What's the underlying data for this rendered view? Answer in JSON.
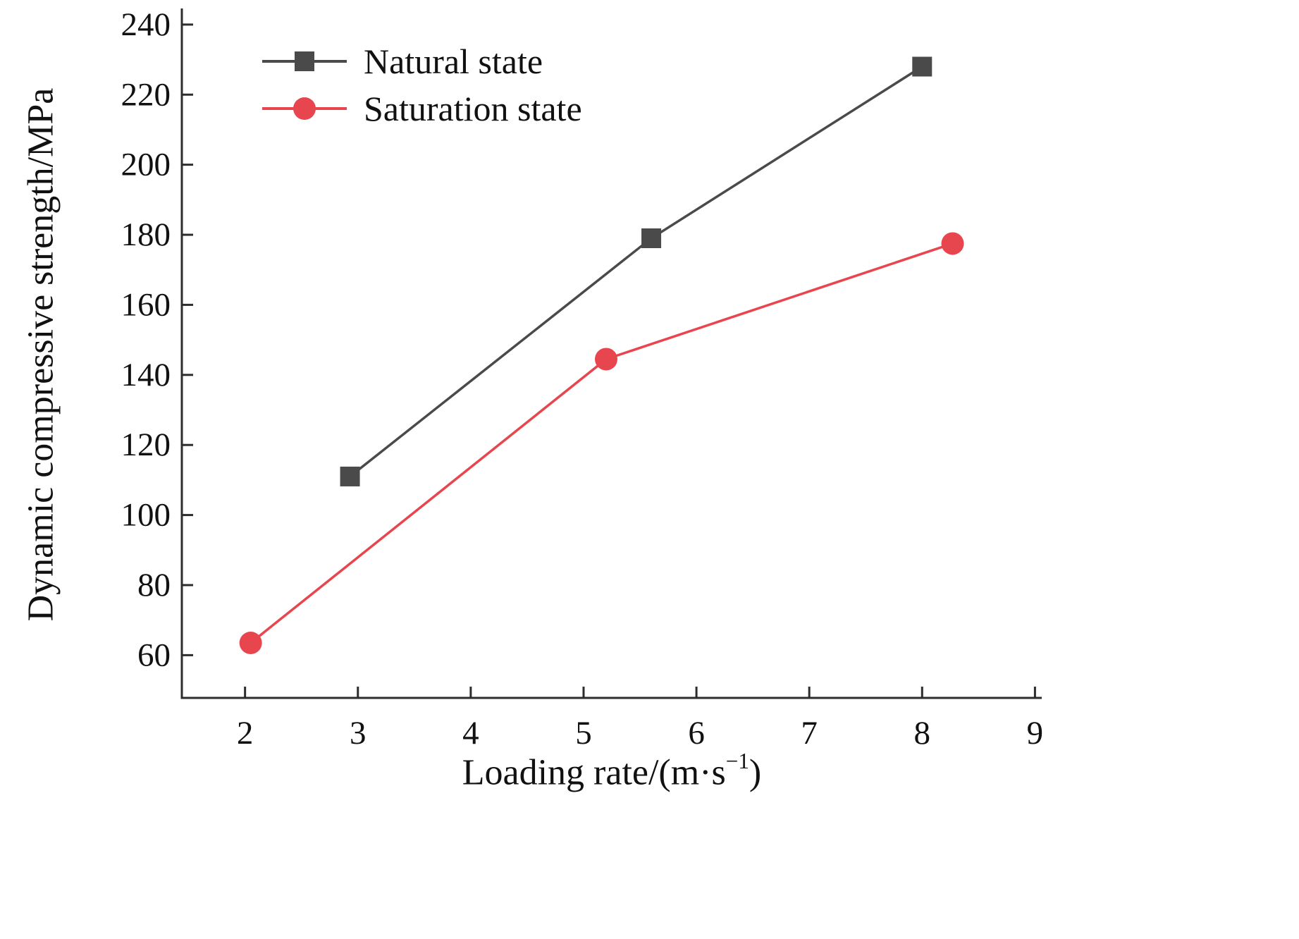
{
  "chart_data": {
    "type": "line",
    "title": "",
    "xlabel": {
      "prefix": "Loading rate/(m·s",
      "sup": "−1",
      "suffix": ")"
    },
    "ylabel": "Dynamic compressive strength/MPa",
    "xlim": [
      1.44,
      9.06
    ],
    "ylim": [
      47.8,
      244.6
    ],
    "xticks": [
      2,
      3,
      4,
      5,
      6,
      7,
      8,
      9
    ],
    "yticks": [
      60,
      80,
      100,
      120,
      140,
      160,
      180,
      200,
      220,
      240
    ],
    "grid": false,
    "legend_position": "top-left-inside",
    "axis_color": "#2d2d2d",
    "tick_label_color": "#111111",
    "series": [
      {
        "name": "Natural state",
        "marker": "square",
        "color": "#4a4a4a",
        "points": [
          {
            "x": 2.93,
            "y": 111
          },
          {
            "x": 5.6,
            "y": 179
          },
          {
            "x": 8.0,
            "y": 228
          }
        ]
      },
      {
        "name": "Saturation state",
        "marker": "circle",
        "color": "#e8464e",
        "points": [
          {
            "x": 2.05,
            "y": 63.5
          },
          {
            "x": 5.2,
            "y": 144.5
          },
          {
            "x": 8.27,
            "y": 177.5
          }
        ]
      }
    ]
  }
}
